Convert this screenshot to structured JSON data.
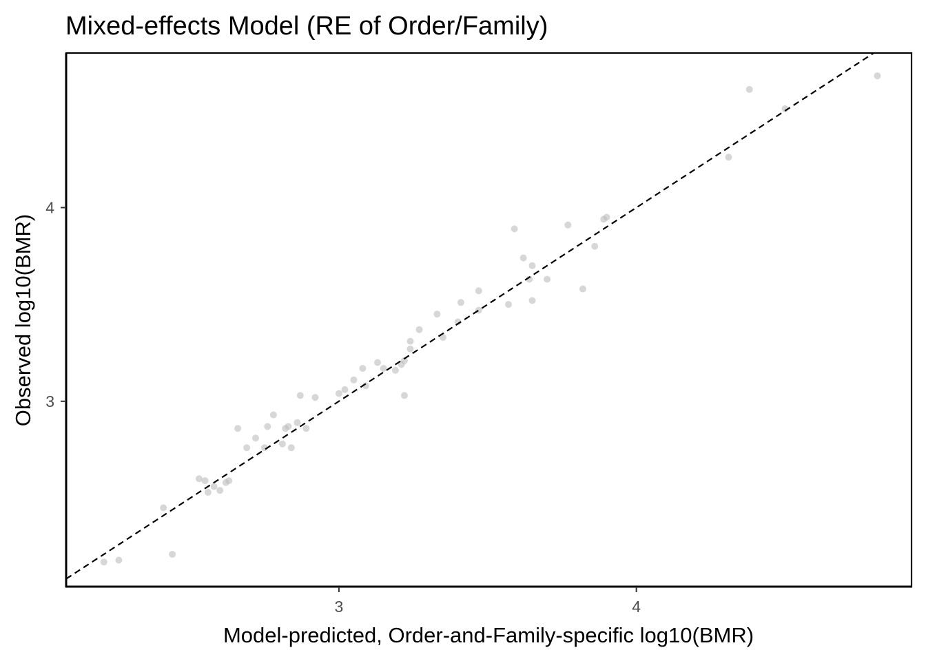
{
  "chart_data": {
    "type": "scatter",
    "title": "Mixed-effects Model (RE of Order/Family)",
    "xlabel": "Model-predicted, Order-and-Family-specific log10(BMR)",
    "ylabel": "Observed log10(BMR)",
    "xlim": [
      2.083,
      4.925
    ],
    "ylim": [
      2.043,
      4.798
    ],
    "xticks": [
      "3",
      "4"
    ],
    "yticks": [
      "3",
      "4"
    ],
    "reference_line": {
      "style": "dashed",
      "slope": 1,
      "intercept": 0,
      "color": "#000000"
    },
    "grid": false,
    "point_color": "#bdbdbd",
    "series": [
      {
        "points": [
          [
            2.21,
            2.17
          ],
          [
            2.26,
            2.18
          ],
          [
            2.41,
            2.45
          ],
          [
            2.44,
            2.21
          ],
          [
            2.53,
            2.6
          ],
          [
            2.55,
            2.59
          ],
          [
            2.56,
            2.53
          ],
          [
            2.58,
            2.56
          ],
          [
            2.6,
            2.54
          ],
          [
            2.62,
            2.58
          ],
          [
            2.63,
            2.59
          ],
          [
            2.66,
            2.86
          ],
          [
            2.69,
            2.76
          ],
          [
            2.72,
            2.81
          ],
          [
            2.75,
            2.76
          ],
          [
            2.76,
            2.87
          ],
          [
            2.78,
            2.93
          ],
          [
            2.81,
            2.78
          ],
          [
            2.82,
            2.86
          ],
          [
            2.83,
            2.87
          ],
          [
            2.84,
            2.76
          ],
          [
            2.86,
            2.89
          ],
          [
            2.87,
            3.03
          ],
          [
            2.89,
            2.86
          ],
          [
            2.92,
            3.02
          ],
          [
            3.0,
            3.04
          ],
          [
            3.02,
            3.06
          ],
          [
            3.05,
            3.11
          ],
          [
            3.08,
            3.17
          ],
          [
            3.09,
            3.08
          ],
          [
            3.13,
            3.2
          ],
          [
            3.15,
            3.17
          ],
          [
            3.19,
            3.16
          ],
          [
            3.21,
            3.19
          ],
          [
            3.22,
            3.21
          ],
          [
            3.22,
            3.03
          ],
          [
            3.24,
            3.27
          ],
          [
            3.24,
            3.31
          ],
          [
            3.27,
            3.37
          ],
          [
            3.33,
            3.45
          ],
          [
            3.35,
            3.33
          ],
          [
            3.4,
            3.41
          ],
          [
            3.41,
            3.51
          ],
          [
            3.47,
            3.57
          ],
          [
            3.47,
            3.47
          ],
          [
            3.57,
            3.5
          ],
          [
            3.59,
            3.89
          ],
          [
            3.62,
            3.74
          ],
          [
            3.64,
            3.63
          ],
          [
            3.65,
            3.7
          ],
          [
            3.65,
            3.52
          ],
          [
            3.7,
            3.63
          ],
          [
            3.77,
            3.91
          ],
          [
            3.82,
            3.58
          ],
          [
            3.86,
            3.8
          ],
          [
            3.89,
            3.94
          ],
          [
            3.9,
            3.95
          ],
          [
            4.31,
            4.26
          ],
          [
            4.38,
            4.61
          ],
          [
            4.5,
            4.51
          ],
          [
            4.81,
            4.68
          ]
        ]
      }
    ]
  }
}
